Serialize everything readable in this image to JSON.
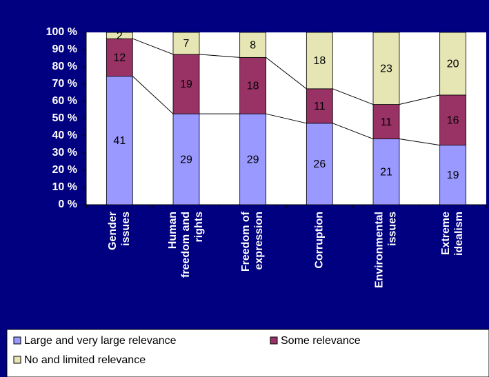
{
  "chart_data": {
    "type": "bar",
    "stacked": "percent",
    "categories": [
      "Gender\nissues",
      "Human\nfreedom and\nrights",
      "Freedom of\nexpression",
      "Corruption",
      "Environmental\nissues",
      "Extreme\nidealism"
    ],
    "series": [
      {
        "name": "Large and very large relevance",
        "color": "#9999ff",
        "values": [
          41,
          29,
          29,
          26,
          21,
          19
        ]
      },
      {
        "name": "Some relevance",
        "color": "#993366",
        "values": [
          12,
          19,
          18,
          11,
          11,
          16
        ]
      },
      {
        "name": "No and limited relevance",
        "color": "#e6e6b4",
        "values": [
          2,
          7,
          8,
          18,
          23,
          20
        ]
      }
    ],
    "ylim": [
      0,
      100
    ],
    "yticks": [
      {
        "value": 0,
        "label": "0 %"
      },
      {
        "value": 10,
        "label": "10 %"
      },
      {
        "value": 20,
        "label": "20 %"
      },
      {
        "value": 30,
        "label": "30 %"
      },
      {
        "value": 40,
        "label": "40 %"
      },
      {
        "value": 50,
        "label": "50 %"
      },
      {
        "value": 60,
        "label": "60 %"
      },
      {
        "value": 70,
        "label": "70 %"
      },
      {
        "value": 80,
        "label": "80 %"
      },
      {
        "value": 90,
        "label": "90 %"
      },
      {
        "value": 100,
        "label": "100 %"
      }
    ],
    "grid": false,
    "legend": "bottom"
  }
}
